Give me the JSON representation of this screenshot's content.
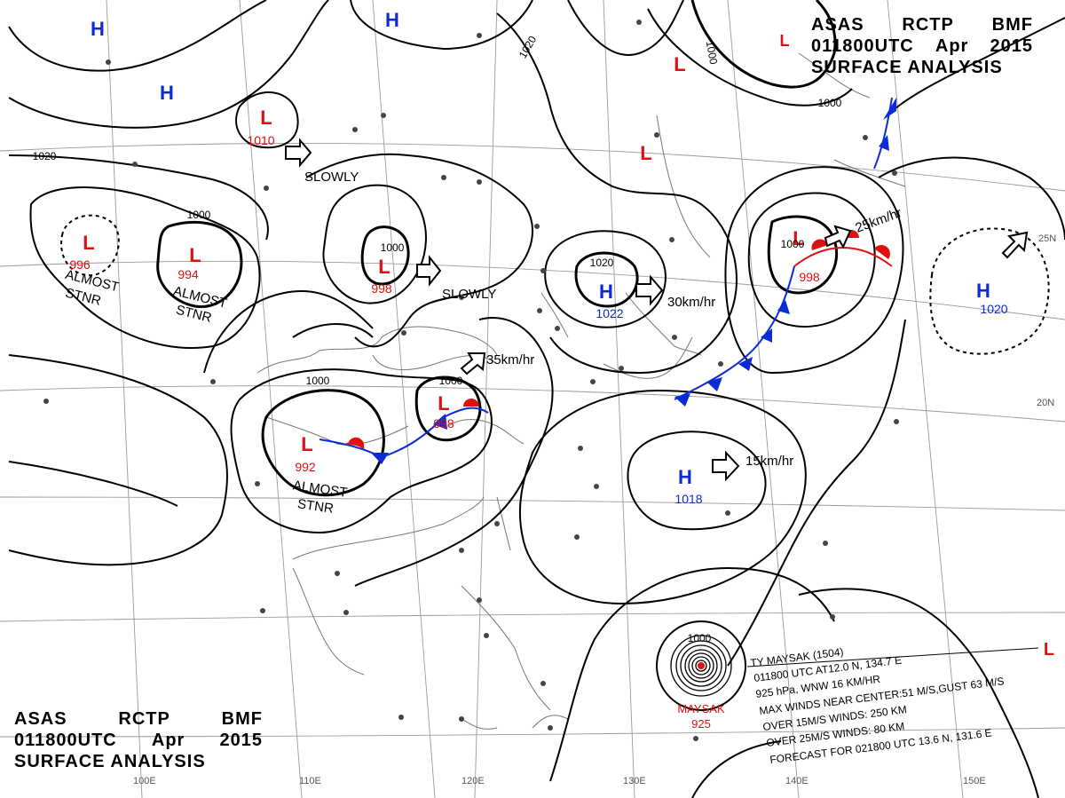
{
  "header": {
    "line1": [
      "ASAS",
      "RCTP",
      "BMF"
    ],
    "line2": [
      "011800UTC",
      "Apr",
      "2015"
    ],
    "line3": "SURFACE ANALYSIS"
  },
  "colors": {
    "high": "#0a2bd6",
    "low": "#e01010",
    "isobar": "#000000",
    "graticule": "#9a9a9a",
    "coast": "#777777"
  },
  "pressure_systems": [
    {
      "type": "H",
      "value": ""
    },
    {
      "type": "H",
      "value": ""
    },
    {
      "type": "H",
      "value": ""
    },
    {
      "type": "L",
      "value": "1010"
    },
    {
      "type": "L",
      "value": "996"
    },
    {
      "type": "L",
      "value": "994"
    },
    {
      "type": "L",
      "value": "998"
    },
    {
      "type": "L",
      "value": "992"
    },
    {
      "type": "L",
      "value": "998"
    },
    {
      "type": "H",
      "value": "1022"
    },
    {
      "type": "H",
      "value": "1018"
    },
    {
      "type": "L",
      "value": "998"
    },
    {
      "type": "H",
      "value": "1020"
    },
    {
      "type": "L",
      "value": ""
    },
    {
      "type": "L",
      "value": ""
    },
    {
      "type": "L",
      "value": ""
    },
    {
      "type": "L",
      "value": ""
    }
  ],
  "isobar_labels": [
    "1020",
    "1000",
    "1020",
    "1000",
    "1000",
    "1000",
    "1000",
    "1000",
    "1000",
    "1020",
    "1000"
  ],
  "motion_labels": [
    "SLOWLY",
    "SLOWLY",
    "30km/hr",
    "25km/hr",
    "35km/hr",
    "15km/hr",
    "ALMOST\nSTNR",
    "ALMOST\nSTNR",
    "ALMOST\nSTNR"
  ],
  "longitude_labels": [
    "100E",
    "110E",
    "120E",
    "130E",
    "140E",
    "150E"
  ],
  "latitude_labels": [
    "20N",
    "25N"
  ],
  "typhoon": {
    "name": "MAYSAK",
    "pressure": "925",
    "isobar": "1000",
    "info": [
      "TY  MAYSAK  (1504)",
      "011800 UTC  AT12.0 N, 134.7 E",
      "925 hPa, WNW 16 KM/HR",
      "MAX WINDS NEAR CENTER:51 M/S,GUST 63 M/S",
      "OVER 15M/S WINDS: 250 KM",
      "OVER 25M/S WINDS: 80 KM",
      "FORECAST FOR 021800 UTC 13.6 N, 131.6 E"
    ]
  }
}
